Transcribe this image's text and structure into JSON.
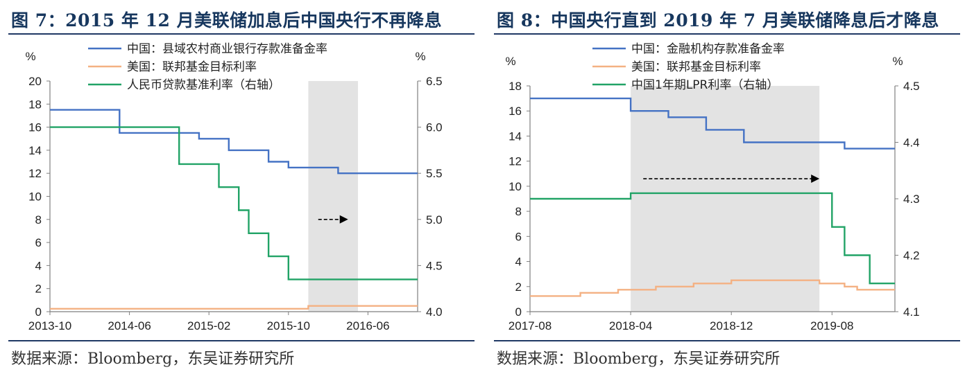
{
  "charts": [
    {
      "title": "图 7：2015 年 12 月美联储加息后中国央行不再降息",
      "source": "数据来源：Bloomberg，东吴证券研究所",
      "chart_data": {
        "type": "line",
        "y_left": {
          "label": "%",
          "ticks": [
            0,
            2,
            4,
            6,
            8,
            10,
            12,
            14,
            16,
            18,
            20
          ],
          "range": [
            0,
            20
          ]
        },
        "y_right": {
          "label": "%",
          "ticks": [
            "4.0",
            "4.5",
            "5.0",
            "5.5",
            "6.0",
            "6.5"
          ],
          "range": [
            4.0,
            6.5
          ]
        },
        "x_ticks": [
          "2013-10",
          "2014-06",
          "2015-02",
          "2015-10",
          "2016-06"
        ],
        "x_range": [
          "2013-10",
          "2016-11"
        ],
        "shaded_period": [
          "2015-12",
          "2016-05"
        ],
        "series": [
          {
            "name": "中国：县域农村商业银行存款准备金率",
            "axis": "left",
            "color": "#4472c4",
            "x": [
              "2013-10",
              "2014-05",
              "2014-05",
              "2015-01",
              "2015-01",
              "2015-04",
              "2015-04",
              "2015-08",
              "2015-08",
              "2015-10",
              "2015-10",
              "2016-03",
              "2016-03",
              "2016-11"
            ],
            "y": [
              17.5,
              17.5,
              15.5,
              15.5,
              15,
              15,
              14,
              14,
              13,
              13,
              12.5,
              12.5,
              12,
              12
            ]
          },
          {
            "name": "美国：联邦基金目标利率",
            "axis": "left",
            "color": "#f4b183",
            "x": [
              "2013-10",
              "2015-12",
              "2015-12",
              "2016-11"
            ],
            "y": [
              0.25,
              0.25,
              0.5,
              0.5
            ]
          },
          {
            "name": "人民币贷款基准利率（右轴）",
            "axis": "right",
            "color": "#21a366",
            "x": [
              "2013-10",
              "2014-11",
              "2014-11",
              "2015-03",
              "2015-03",
              "2015-05",
              "2015-05",
              "2015-06",
              "2015-06",
              "2015-08",
              "2015-08",
              "2015-10",
              "2015-10",
              "2016-11"
            ],
            "y": [
              6.0,
              6.0,
              5.6,
              5.6,
              5.35,
              5.35,
              5.1,
              5.1,
              4.85,
              4.85,
              4.6,
              4.6,
              4.35,
              4.35
            ]
          }
        ],
        "annotation": {
          "type": "dashed-arrow",
          "from": "2016-01",
          "to": "2016-04",
          "y": 5.0
        }
      }
    },
    {
      "title": "图 8：中国央行直到 2019 年 7 月美联储降息后才降息",
      "source": "数据来源：Bloomberg，东吴证券研究所",
      "chart_data": {
        "type": "line",
        "y_left": {
          "label": "%",
          "ticks": [
            0,
            2,
            4,
            6,
            8,
            10,
            12,
            14,
            16,
            18
          ],
          "range": [
            0,
            18
          ]
        },
        "y_right": {
          "label": "%",
          "ticks": [
            "4.1",
            "4.2",
            "4.3",
            "4.4",
            "4.5"
          ],
          "range": [
            4.1,
            4.5
          ]
        },
        "x_ticks": [
          "2017-08",
          "2018-04",
          "2018-12",
          "2019-08"
        ],
        "x_range": [
          "2017-08",
          "2020-01"
        ],
        "shaded_period": [
          "2018-04",
          "2019-07"
        ],
        "series": [
          {
            "name": "中国：金融机构存款准备金率",
            "axis": "left",
            "color": "#4472c4",
            "x": [
              "2017-08",
              "2018-04",
              "2018-04",
              "2018-07",
              "2018-07",
              "2018-10",
              "2018-10",
              "2019-01",
              "2019-01",
              "2019-09",
              "2019-09",
              "2020-01"
            ],
            "y": [
              17,
              17,
              16,
              16,
              15.5,
              15.5,
              14.5,
              14.5,
              13.5,
              13.5,
              13,
              13
            ]
          },
          {
            "name": "美国：联邦基金目标利率",
            "axis": "left",
            "color": "#f4b183",
            "x": [
              "2017-08",
              "2017-12",
              "2017-12",
              "2018-03",
              "2018-03",
              "2018-06",
              "2018-06",
              "2018-09",
              "2018-09",
              "2018-12",
              "2018-12",
              "2019-07",
              "2019-07",
              "2019-09",
              "2019-09",
              "2019-10",
              "2019-10",
              "2020-01"
            ],
            "y": [
              1.25,
              1.25,
              1.5,
              1.5,
              1.75,
              1.75,
              2.0,
              2.0,
              2.25,
              2.25,
              2.5,
              2.5,
              2.25,
              2.25,
              2.0,
              2.0,
              1.75,
              1.75
            ]
          },
          {
            "name": "中国1年期LPR利率（右轴）",
            "axis": "right",
            "color": "#21a366",
            "x": [
              "2017-08",
              "2018-04",
              "2018-04",
              "2019-08",
              "2019-08",
              "2019-09",
              "2019-09",
              "2019-11",
              "2019-11",
              "2020-01"
            ],
            "y": [
              4.3,
              4.3,
              4.31,
              4.31,
              4.25,
              4.25,
              4.2,
              4.2,
              4.15,
              4.15
            ]
          }
        ],
        "annotation": {
          "type": "dashed-arrow",
          "from": "2018-05",
          "to": "2019-07",
          "y": 10.6
        }
      }
    }
  ]
}
